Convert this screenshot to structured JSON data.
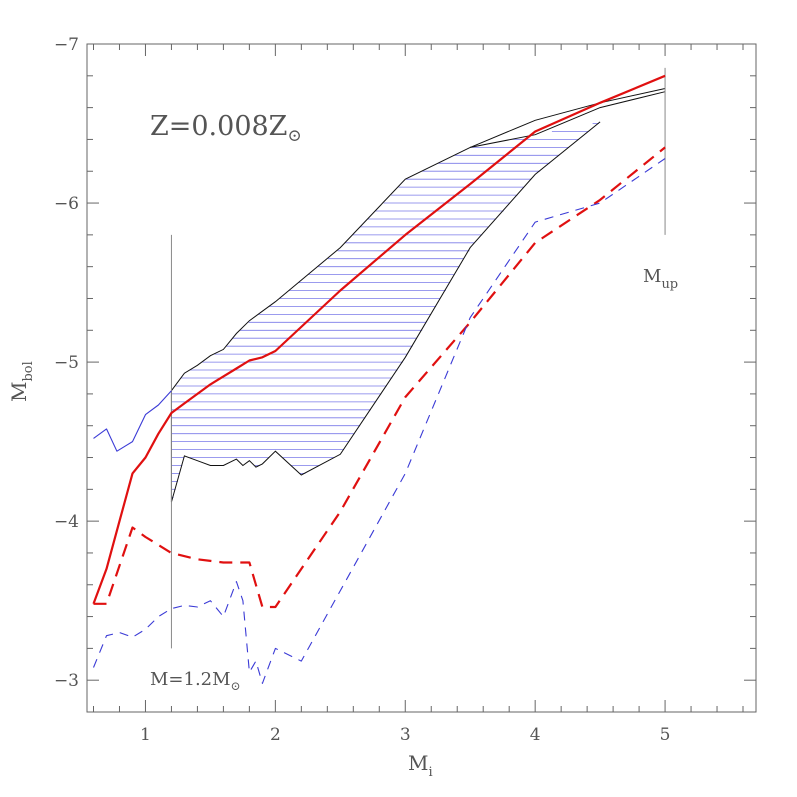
{
  "chart_data": {
    "type": "line",
    "xlabel": "M",
    "xlabel_sub": "i",
    "ylabel": "M",
    "ylabel_sub": "bol",
    "xlim": [
      0.55,
      5.7
    ],
    "ylim": [
      -2.8,
      -7.0
    ],
    "x_ticks": [
      1,
      2,
      3,
      4,
      5
    ],
    "x_tick_labels": [
      "1",
      "2",
      "3",
      "4",
      "5"
    ],
    "y_ticks": [
      -3,
      -4,
      -5,
      -6,
      -7
    ],
    "y_tick_labels": [
      "−3",
      "−4",
      "−5",
      "−6",
      "−7"
    ],
    "grid": false,
    "annotations": {
      "metallicity": {
        "main": "Z=0.008Z",
        "symbol": "⊙",
        "at": [
          1.05,
          -6.45
        ]
      },
      "mass_limit": {
        "main": "M=1.2M",
        "symbol": "⊙",
        "at": [
          1.02,
          -2.92
        ]
      },
      "m_up": {
        "main": "M",
        "sub": "up",
        "at": [
          4.87,
          -5.52
        ]
      }
    },
    "vertical_markers": [
      {
        "x": 1.2,
        "y_from": -3.2,
        "y_to": -5.8
      },
      {
        "x": 5.0,
        "y_from": -5.8,
        "y_to": -6.85
      }
    ],
    "colors": {
      "red": "#e01010",
      "blue": "#3b3bd6",
      "black": "#111111",
      "gray": "#888888",
      "hatch": "#7a7ae8"
    },
    "series": [
      {
        "style": "solid",
        "color": "#e01010",
        "width": 2.2,
        "x": [
          0.6,
          0.7,
          0.8,
          0.9,
          1.0,
          1.1,
          1.2,
          1.3,
          1.4,
          1.5,
          1.6,
          1.7,
          1.8,
          1.85,
          1.9,
          2.0,
          2.5,
          3.0,
          3.5,
          4.0,
          4.5,
          5.0
        ],
        "y": [
          -3.48,
          -3.7,
          -4.0,
          -4.3,
          -4.4,
          -4.55,
          -4.68,
          -4.74,
          -4.8,
          -4.86,
          -4.91,
          -4.96,
          -5.01,
          -5.02,
          -5.03,
          -5.07,
          -5.45,
          -5.8,
          -6.12,
          -6.45,
          -6.63,
          -6.8
        ]
      },
      {
        "style": "dashed",
        "color": "#e01010",
        "width": 2.2,
        "x": [
          0.6,
          0.7,
          0.8,
          0.9,
          1.0,
          1.2,
          1.4,
          1.6,
          1.8,
          1.9,
          2.0,
          2.5,
          3.0,
          3.5,
          4.0,
          4.5,
          5.0
        ],
        "y": [
          -3.48,
          -3.48,
          -3.72,
          -3.96,
          -3.9,
          -3.8,
          -3.76,
          -3.74,
          -3.74,
          -3.46,
          -3.46,
          -4.06,
          -4.78,
          -5.25,
          -5.75,
          -6.02,
          -6.35
        ]
      },
      {
        "style": "solid",
        "color": "#3b3bd6",
        "width": 1.1,
        "x": [
          0.6,
          0.7,
          0.78,
          0.9,
          1.0,
          1.1,
          1.2
        ],
        "y": [
          -4.52,
          -4.58,
          -4.44,
          -4.5,
          -4.67,
          -4.73,
          -4.82
        ]
      },
      {
        "style": "dashed",
        "color": "#3b3bd6",
        "width": 1.1,
        "x": [
          0.6,
          0.7,
          0.8,
          0.9,
          1.0,
          1.1,
          1.2,
          1.3,
          1.4,
          1.5,
          1.6,
          1.7,
          1.75,
          1.8,
          1.85,
          1.9,
          2.0,
          2.2,
          3.0,
          3.5,
          4.0,
          4.5,
          5.0
        ],
        "y": [
          -3.08,
          -3.28,
          -3.3,
          -3.27,
          -3.32,
          -3.4,
          -3.45,
          -3.47,
          -3.46,
          -3.5,
          -3.4,
          -3.62,
          -3.5,
          -3.05,
          -3.12,
          -2.98,
          -3.2,
          -3.12,
          -4.3,
          -5.28,
          -5.88,
          -6.0,
          -6.28
        ]
      }
    ],
    "hatched_region": {
      "upper_boundary": {
        "x": [
          1.2,
          1.3,
          1.4,
          1.5,
          1.6,
          1.7,
          1.8,
          1.9,
          2.0,
          2.5,
          3.0,
          3.5,
          4.0,
          4.5,
          5.0
        ],
        "y": [
          -4.82,
          -4.93,
          -4.98,
          -5.04,
          -5.08,
          -5.18,
          -5.26,
          -5.32,
          -5.38,
          -5.72,
          -6.15,
          -6.35,
          -6.52,
          -6.63,
          -6.72
        ]
      },
      "lower_boundary": {
        "x": [
          1.2,
          1.3,
          1.4,
          1.5,
          1.6,
          1.7,
          1.75,
          1.8,
          1.85,
          1.9,
          2.0,
          2.2,
          2.5,
          3.0,
          3.5,
          4.0,
          4.5
        ],
        "y": [
          -4.12,
          -4.41,
          -4.38,
          -4.35,
          -4.35,
          -4.39,
          -4.35,
          -4.38,
          -4.34,
          -4.36,
          -4.44,
          -4.29,
          -4.42,
          -5.03,
          -5.72,
          -6.18,
          -6.51
        ]
      },
      "fill_top": {
        "x": [
          1.2,
          1.3,
          1.4,
          1.5,
          1.6,
          1.7,
          1.8,
          1.9,
          2.0,
          2.5,
          3.0,
          3.5,
          4.0,
          4.5
        ],
        "y": [
          -4.82,
          -4.93,
          -4.98,
          -5.04,
          -5.08,
          -5.18,
          -5.26,
          -5.32,
          -5.38,
          -5.72,
          -6.15,
          -6.35,
          -6.43,
          -6.51
        ]
      },
      "upper_branch_2": {
        "x": [
          3.5,
          4.0,
          4.5,
          5.0
        ],
        "y": [
          -6.35,
          -6.43,
          -6.6,
          -6.7
        ]
      }
    }
  }
}
